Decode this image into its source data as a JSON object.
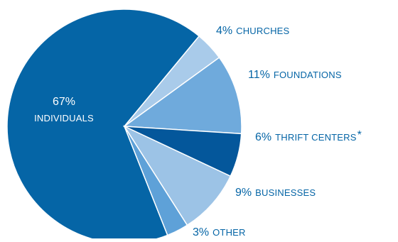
{
  "chart_data": {
    "type": "pie",
    "title": "",
    "slices": [
      {
        "percent": "67%",
        "name": "INDIVIDUALS",
        "value": 67,
        "color": "#0565A6"
      },
      {
        "percent": "4%",
        "name": "CHURCHES",
        "value": 4,
        "color": "#A9CBEA"
      },
      {
        "percent": "11%",
        "name": "FOUNDATIONS",
        "value": 11,
        "color": "#6FAADC"
      },
      {
        "percent": "6%",
        "name": "THRIFT CENTERS",
        "suffix": "*",
        "value": 6,
        "color": "#04579B"
      },
      {
        "percent": "9%",
        "name": "BUSINESSES",
        "value": 9,
        "color": "#9CC3E6"
      },
      {
        "percent": "3%",
        "name": "OTHER",
        "value": 3,
        "color": "#5EA1D8"
      }
    ]
  },
  "colors": {
    "label_text": "#0565A6",
    "inner_label_text": "#ffffff"
  }
}
